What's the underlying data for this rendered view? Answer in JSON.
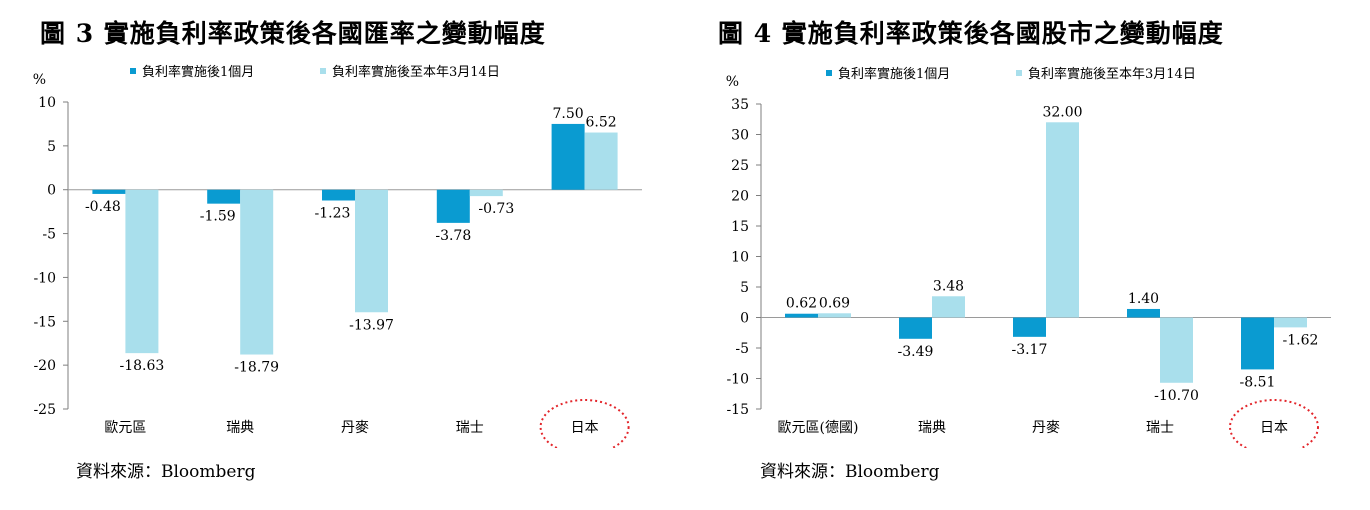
{
  "charts": [
    {
      "id": "fx",
      "title": "圖 3  實施負利率政策後各國匯率之變動幅度",
      "source": "資料來源：Bloomberg",
      "highlighted_category": "日本",
      "chart_data": {
        "type": "bar",
        "ylabel": "%",
        "ylim": [
          -25,
          10
        ],
        "yticks": [
          10,
          5,
          0,
          -5,
          -10,
          -15,
          -20,
          -25
        ],
        "grid": false,
        "legend_position": "top",
        "categories": [
          "歐元區",
          "瑞典",
          "丹麥",
          "瑞士",
          "日本"
        ],
        "series": [
          {
            "name": "負利率實施後1個月",
            "color": "#0a9bd1",
            "values": [
              -0.48,
              -1.59,
              -1.23,
              -3.78,
              7.5
            ],
            "labels": [
              "-0.48",
              "-1.59",
              "-1.23",
              "-3.78",
              "7.50"
            ]
          },
          {
            "name": "負利率實施後至本年3月14日",
            "color": "#a9dfec",
            "values": [
              -18.63,
              -18.79,
              -13.97,
              -0.73,
              6.52
            ],
            "labels": [
              "-18.63",
              "-18.79",
              "-13.97",
              "-0.73",
              "6.52"
            ]
          }
        ]
      }
    },
    {
      "id": "stock",
      "title": "圖 4  實施負利率政策後各國股市之變動幅度",
      "source": "資料來源：Bloomberg",
      "highlighted_category": "日本",
      "chart_data": {
        "type": "bar",
        "ylabel": "%",
        "ylim": [
          -15,
          35
        ],
        "yticks": [
          35,
          30,
          25,
          20,
          15,
          10,
          5,
          0,
          -5,
          -10,
          -15
        ],
        "grid": false,
        "legend_position": "top",
        "categories": [
          "歐元區(德國)",
          "瑞典",
          "丹麥",
          "瑞士",
          "日本"
        ],
        "series": [
          {
            "name": "負利率實施後1個月",
            "color": "#0a9bd1",
            "values": [
              0.62,
              -3.49,
              -3.17,
              1.4,
              -8.51
            ],
            "labels": [
              "0.62",
              "-3.49",
              "-3.17",
              "1.40",
              "-8.51"
            ]
          },
          {
            "name": "負利率實施後至本年3月14日",
            "color": "#a9dfec",
            "values": [
              0.69,
              3.48,
              32.0,
              -10.7,
              -1.62
            ],
            "labels": [
              "0.69",
              "3.48",
              "32.00",
              "-10.70",
              "-1.62"
            ]
          }
        ]
      }
    }
  ]
}
